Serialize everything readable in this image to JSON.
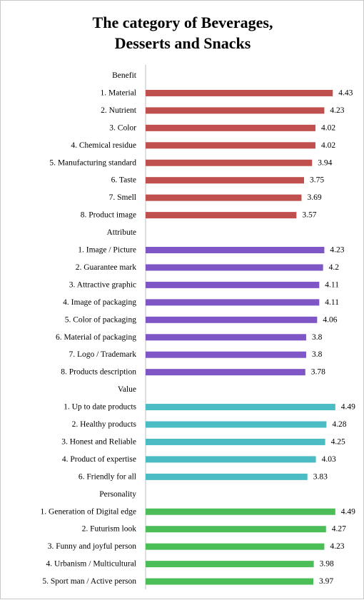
{
  "title_lines": [
    "The category of Beverages,",
    "Desserts and Snacks"
  ],
  "chart_data": {
    "type": "bar",
    "orientation": "horizontal",
    "title": "The category of Beverages, Desserts and Snacks",
    "xlim": [
      0,
      5
    ],
    "grid": false,
    "legend": "none",
    "groups": [
      {
        "name": "Benefit",
        "color": "#c0504d",
        "items": [
          {
            "label": "1. Material",
            "value": 4.43
          },
          {
            "label": "2. Nutrient",
            "value": 4.23
          },
          {
            "label": "3. Color",
            "value": 4.02
          },
          {
            "label": "4. Chemical residue",
            "value": 4.02
          },
          {
            "label": "5. Manufacturing standard",
            "value": 3.94
          },
          {
            "label": "6. Taste",
            "value": 3.75
          },
          {
            "label": "7. Smell",
            "value": 3.69
          },
          {
            "label": "8.  Product image",
            "value": 3.57
          }
        ]
      },
      {
        "name": "Attribute",
        "color": "#7f56c6",
        "items": [
          {
            "label": "1. Image / Picture",
            "value": 4.23
          },
          {
            "label": "2. Guarantee mark",
            "value": 4.2
          },
          {
            "label": "3. Attractive graphic",
            "value": 4.11
          },
          {
            "label": "4. Image of packaging",
            "value": 4.11
          },
          {
            "label": "5. Color of packaging",
            "value": 4.06
          },
          {
            "label": "6. Material of packaging",
            "value": 3.8
          },
          {
            "label": "7. Logo / Trademark",
            "value": 3.8
          },
          {
            "label": "8. Products description",
            "value": 3.78
          }
        ]
      },
      {
        "name": "Value",
        "color": "#4bbcc4",
        "items": [
          {
            "label": "1. Up to date products",
            "value": 4.49
          },
          {
            "label": "2. Healthy products",
            "value": 4.28
          },
          {
            "label": "3.  Honest and Reliable",
            "value": 4.25
          },
          {
            "label": "4. Product of expertise",
            "value": 4.03
          },
          {
            "label": "6. Friendly  for all",
            "value": 3.83
          }
        ]
      },
      {
        "name": "Personality",
        "color": "#4cbe57",
        "items": [
          {
            "label": "1. Generation of Digital  edge",
            "value": 4.49
          },
          {
            "label": "2. Futurism look",
            "value": 4.27
          },
          {
            "label": "3. Funny and joyful person",
            "value": 4.23
          },
          {
            "label": "4. Urbanism / Multicultural",
            "value": 3.98
          },
          {
            "label": "5. Sport man / Active person",
            "value": 3.97
          }
        ]
      }
    ]
  }
}
